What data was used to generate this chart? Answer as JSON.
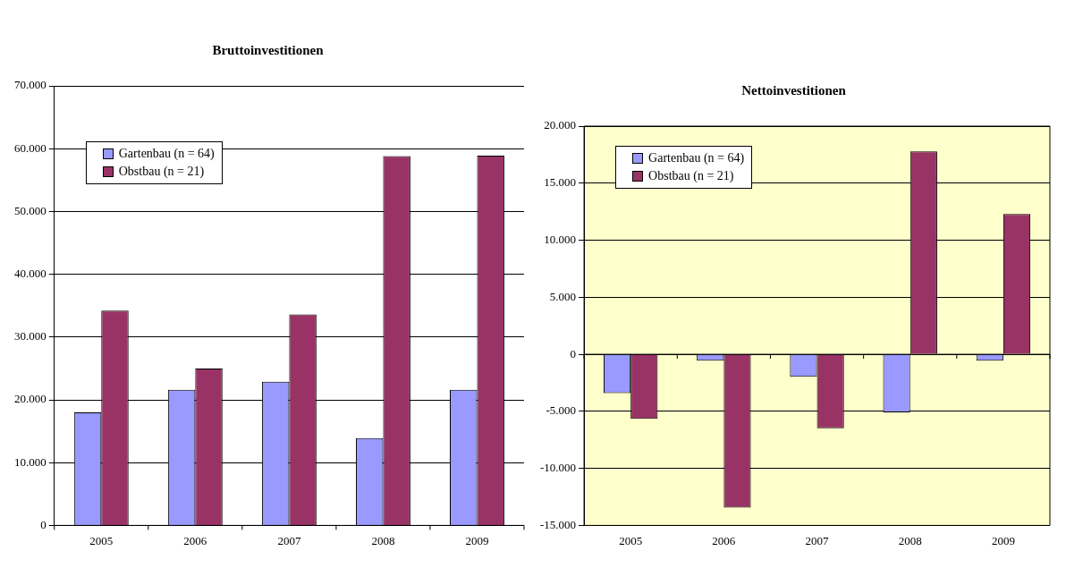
{
  "chart_data": [
    {
      "type": "bar",
      "title": "Bruttoinvestitionen",
      "categories": [
        "2005",
        "2006",
        "2007",
        "2008",
        "2009"
      ],
      "series": [
        {
          "name": "Gartenbau (n = 64)",
          "color": "#9999ff",
          "values": [
            18000,
            21600,
            22900,
            13900,
            21600
          ]
        },
        {
          "name": "Obstbau (n = 21)",
          "color": "#993366",
          "values": [
            34200,
            25000,
            33600,
            58800,
            58900
          ]
        }
      ],
      "ylim": [
        0,
        70000
      ],
      "yticks": [
        {
          "value": 0,
          "label": "0"
        },
        {
          "value": 10000,
          "label": "10.000"
        },
        {
          "value": 20000,
          "label": "20.000"
        },
        {
          "value": 30000,
          "label": "30.000"
        },
        {
          "value": 40000,
          "label": "40.000"
        },
        {
          "value": 50000,
          "label": "50.000"
        },
        {
          "value": 60000,
          "label": "60.000"
        },
        {
          "value": 70000,
          "label": "70.000"
        }
      ],
      "grid": "y",
      "legend": "top left"
    },
    {
      "type": "bar",
      "title": "Nettoinvestitionen",
      "categories": [
        "2005",
        "2006",
        "2007",
        "2008",
        "2009"
      ],
      "series": [
        {
          "name": "Gartenbau (n = 64)",
          "color": "#9999ff",
          "values": [
            -3400,
            -570,
            -1970,
            -5080,
            -570
          ]
        },
        {
          "name": "Obstbau (n = 21)",
          "color": "#993366",
          "values": [
            -5660,
            -13440,
            -6480,
            17790,
            12300
          ]
        }
      ],
      "ylim": [
        -15000,
        20000
      ],
      "yticks": [
        {
          "value": -15000,
          "label": "-15.000"
        },
        {
          "value": -10000,
          "label": "-10.000"
        },
        {
          "value": -5000,
          "label": "-5.000"
        },
        {
          "value": 0,
          "label": "0"
        },
        {
          "value": 5000,
          "label": "5.000"
        },
        {
          "value": 10000,
          "label": "10.000"
        },
        {
          "value": 15000,
          "label": "15.000"
        },
        {
          "value": 20000,
          "label": "20.000"
        }
      ],
      "grid": "y",
      "legend": "top left"
    }
  ]
}
